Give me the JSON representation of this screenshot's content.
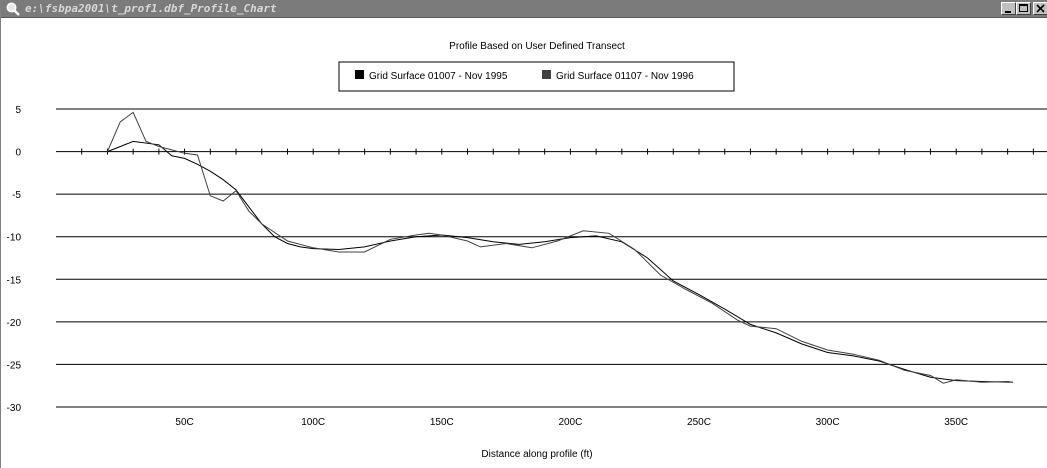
{
  "window": {
    "title": "e:\\fsbpa2001\\t_prof1.dbf_Profile_Chart",
    "buttons": {
      "minimize_icon": "minimize-icon",
      "restore_icon": "restore-icon",
      "close_icon": "close-icon"
    }
  },
  "chart_data": {
    "type": "line",
    "title": "Profile Based on User Defined Transect",
    "xlabel": "Distance along profile (ft)",
    "ylabel": "",
    "xlim": [
      0,
      3800
    ],
    "ylim": [
      -30,
      5
    ],
    "x_ticks": [
      500,
      1000,
      1500,
      2000,
      2500,
      3000,
      3500
    ],
    "x_tick_labels": [
      "50C",
      "100C",
      "150C",
      "200C",
      "250C",
      "300C",
      "350C"
    ],
    "y_ticks": [
      5,
      0,
      -5,
      -10,
      -15,
      -20,
      -25,
      -30
    ],
    "grid": "horizontal",
    "legend_position": "top",
    "colors": {
      "series1": "#000000",
      "series2": "#404040",
      "grid": "#000000"
    },
    "series": [
      {
        "name": "Grid Surface 01007 - Nov 1995",
        "points": [
          [
            200,
            0
          ],
          [
            300,
            1.2
          ],
          [
            400,
            0.8
          ],
          [
            450,
            -0.5
          ],
          [
            500,
            -0.8
          ],
          [
            550,
            -1.5
          ],
          [
            600,
            -2.3
          ],
          [
            650,
            -3.3
          ],
          [
            700,
            -4.5
          ],
          [
            750,
            -6.5
          ],
          [
            800,
            -8.5
          ],
          [
            850,
            -10
          ],
          [
            900,
            -10.8
          ],
          [
            950,
            -11.2
          ],
          [
            1000,
            -11.4
          ],
          [
            1100,
            -11.5
          ],
          [
            1200,
            -11.2
          ],
          [
            1300,
            -10.5
          ],
          [
            1400,
            -10
          ],
          [
            1500,
            -9.8
          ],
          [
            1600,
            -10.1
          ],
          [
            1700,
            -10.6
          ],
          [
            1800,
            -10.9
          ],
          [
            1900,
            -10.6
          ],
          [
            2000,
            -10.1
          ],
          [
            2050,
            -10
          ],
          [
            2100,
            -9.9
          ],
          [
            2200,
            -10.6
          ],
          [
            2300,
            -12.5
          ],
          [
            2400,
            -15.2
          ],
          [
            2500,
            -16.8
          ],
          [
            2600,
            -18.5
          ],
          [
            2700,
            -20.3
          ],
          [
            2800,
            -21.3
          ],
          [
            2900,
            -22.6
          ],
          [
            3000,
            -23.6
          ],
          [
            3100,
            -24
          ],
          [
            3200,
            -24.6
          ],
          [
            3300,
            -25.6
          ],
          [
            3400,
            -26.5
          ],
          [
            3500,
            -26.9
          ],
          [
            3600,
            -27
          ],
          [
            3720,
            -27.1
          ]
        ]
      },
      {
        "name": "Grid Surface 01107 - Nov 1996",
        "points": [
          [
            200,
            0
          ],
          [
            250,
            3.5
          ],
          [
            300,
            4.6
          ],
          [
            350,
            1.2
          ],
          [
            400,
            0.6
          ],
          [
            450,
            0.2
          ],
          [
            500,
            -0.2
          ],
          [
            550,
            -0.4
          ],
          [
            600,
            -5.2
          ],
          [
            650,
            -5.8
          ],
          [
            700,
            -4.6
          ],
          [
            750,
            -7
          ],
          [
            800,
            -8.5
          ],
          [
            900,
            -10.5
          ],
          [
            1000,
            -11.3
          ],
          [
            1100,
            -11.8
          ],
          [
            1200,
            -11.8
          ],
          [
            1300,
            -10.3
          ],
          [
            1400,
            -9.8
          ],
          [
            1450,
            -9.6
          ],
          [
            1500,
            -9.8
          ],
          [
            1600,
            -10.5
          ],
          [
            1650,
            -11.2
          ],
          [
            1750,
            -10.8
          ],
          [
            1850,
            -11.3
          ],
          [
            1950,
            -10.5
          ],
          [
            2050,
            -9.3
          ],
          [
            2150,
            -9.6
          ],
          [
            2250,
            -11.5
          ],
          [
            2350,
            -14.5
          ],
          [
            2450,
            -16.2
          ],
          [
            2550,
            -17.8
          ],
          [
            2650,
            -19.8
          ],
          [
            2700,
            -20.5
          ],
          [
            2800,
            -20.8
          ],
          [
            2900,
            -22.3
          ],
          [
            3000,
            -23.3
          ],
          [
            3100,
            -23.8
          ],
          [
            3200,
            -24.5
          ],
          [
            3300,
            -25.7
          ],
          [
            3400,
            -26.3
          ],
          [
            3450,
            -27.2
          ],
          [
            3500,
            -26.8
          ],
          [
            3600,
            -27.1
          ],
          [
            3700,
            -27
          ],
          [
            3720,
            -27.1
          ]
        ]
      }
    ]
  }
}
